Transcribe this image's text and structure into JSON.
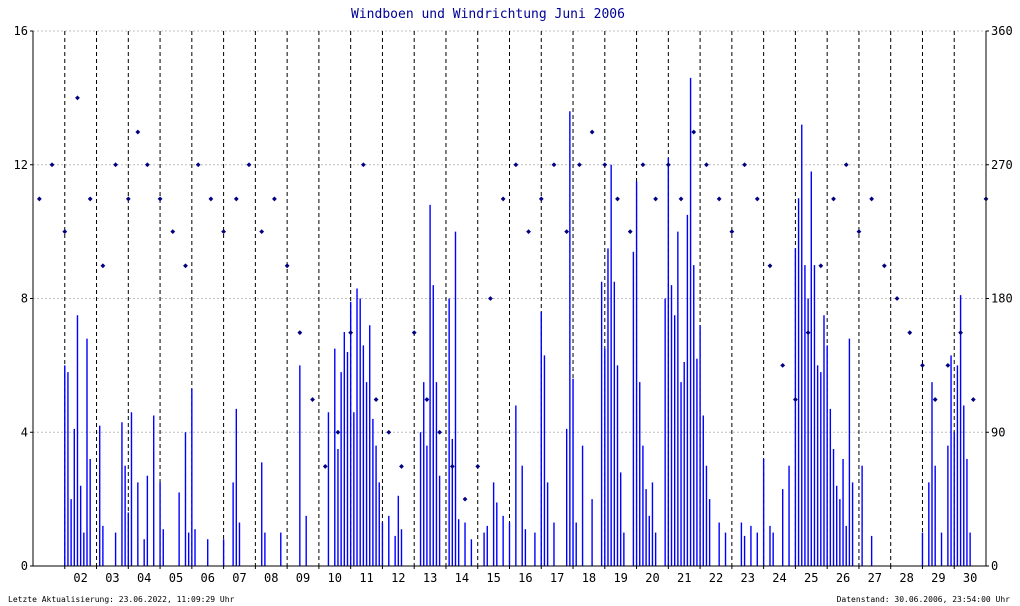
{
  "chart_data": {
    "type": "bar",
    "title": "Windboen und Windrichtung Juni 2006",
    "xlabel": "",
    "ylabel": "",
    "ylim": [
      0,
      16
    ],
    "y2lim": [
      0,
      360
    ],
    "yticks": [
      0,
      4,
      8,
      12,
      16
    ],
    "y2ticks": [
      0,
      90,
      180,
      270,
      360
    ],
    "x_days": [
      "02",
      "03",
      "04",
      "05",
      "06",
      "07",
      "08",
      "09",
      "10",
      "11",
      "12",
      "13",
      "14",
      "15",
      "16",
      "17",
      "18",
      "19",
      "20",
      "21",
      "22",
      "23",
      "24",
      "25",
      "26",
      "27",
      "28",
      "29",
      "30"
    ],
    "grid": true,
    "colors": {
      "gust_bars": "#0000ff",
      "direction_points": "#000080",
      "title": "#000099",
      "grid": "#000000"
    },
    "series": [
      {
        "type": "bar",
        "axis": "left",
        "values": [
          [
            1.0,
            6.0
          ],
          [
            1.1,
            5.8
          ],
          [
            1.2,
            2.0
          ],
          [
            1.3,
            4.1
          ],
          [
            1.4,
            7.5
          ],
          [
            1.5,
            2.4
          ],
          [
            1.6,
            1.0
          ],
          [
            1.7,
            6.8
          ],
          [
            1.8,
            3.2
          ],
          [
            2.1,
            4.2
          ],
          [
            2.2,
            1.2
          ],
          [
            2.6,
            1.0
          ],
          [
            2.8,
            4.3
          ],
          [
            2.9,
            3.0
          ],
          [
            3.0,
            1.6
          ],
          [
            3.1,
            4.6
          ],
          [
            3.3,
            2.5
          ],
          [
            3.5,
            0.8
          ],
          [
            3.6,
            2.7
          ],
          [
            3.8,
            4.5
          ],
          [
            4.0,
            2.5
          ],
          [
            4.1,
            1.1
          ],
          [
            4.6,
            2.2
          ],
          [
            4.8,
            4.0
          ],
          [
            4.9,
            1.0
          ],
          [
            5.0,
            5.3
          ],
          [
            5.1,
            1.1
          ],
          [
            5.5,
            0.8
          ],
          [
            6.0,
            0.8
          ],
          [
            6.3,
            2.5
          ],
          [
            6.4,
            4.7
          ],
          [
            6.5,
            1.3
          ],
          [
            7.2,
            3.1
          ],
          [
            7.3,
            1.0
          ],
          [
            7.8,
            1.0
          ],
          [
            8.4,
            6.0
          ],
          [
            8.6,
            1.5
          ],
          [
            9.3,
            4.6
          ],
          [
            9.5,
            6.5
          ],
          [
            9.6,
            3.5
          ],
          [
            9.7,
            5.8
          ],
          [
            9.8,
            7.0
          ],
          [
            9.9,
            6.4
          ],
          [
            10.0,
            7.9
          ],
          [
            10.1,
            4.6
          ],
          [
            10.2,
            8.3
          ],
          [
            10.3,
            8.0
          ],
          [
            10.4,
            6.6
          ],
          [
            10.5,
            5.5
          ],
          [
            10.6,
            7.2
          ],
          [
            10.7,
            4.4
          ],
          [
            10.8,
            3.6
          ],
          [
            10.9,
            2.5
          ],
          [
            11.0,
            1.3
          ],
          [
            11.2,
            1.5
          ],
          [
            11.4,
            0.9
          ],
          [
            11.5,
            2.1
          ],
          [
            11.6,
            1.1
          ],
          [
            12.2,
            4.0
          ],
          [
            12.3,
            5.5
          ],
          [
            12.4,
            3.6
          ],
          [
            12.5,
            10.8
          ],
          [
            12.6,
            8.4
          ],
          [
            12.7,
            5.5
          ],
          [
            12.8,
            2.7
          ],
          [
            13.1,
            8.0
          ],
          [
            13.2,
            3.8
          ],
          [
            13.3,
            10.0
          ],
          [
            13.4,
            1.4
          ],
          [
            13.6,
            1.3
          ],
          [
            13.8,
            0.8
          ],
          [
            14.2,
            1.0
          ],
          [
            14.3,
            1.2
          ],
          [
            14.5,
            2.5
          ],
          [
            14.6,
            1.9
          ],
          [
            14.8,
            1.5
          ],
          [
            15.0,
            1.3
          ],
          [
            15.2,
            4.8
          ],
          [
            15.4,
            3.0
          ],
          [
            15.5,
            1.1
          ],
          [
            15.8,
            1.0
          ],
          [
            16.0,
            7.6
          ],
          [
            16.1,
            6.3
          ],
          [
            16.2,
            2.5
          ],
          [
            16.4,
            1.3
          ],
          [
            16.8,
            4.1
          ],
          [
            16.9,
            13.6
          ],
          [
            17.0,
            5.6
          ],
          [
            17.1,
            1.3
          ],
          [
            17.3,
            3.6
          ],
          [
            17.6,
            2.0
          ],
          [
            17.9,
            8.5
          ],
          [
            18.0,
            6.5
          ],
          [
            18.1,
            9.5
          ],
          [
            18.2,
            12.0
          ],
          [
            18.3,
            8.5
          ],
          [
            18.4,
            6.0
          ],
          [
            18.5,
            2.8
          ],
          [
            18.6,
            1.0
          ],
          [
            18.9,
            9.4
          ],
          [
            19.0,
            11.5
          ],
          [
            19.1,
            5.5
          ],
          [
            19.2,
            3.6
          ],
          [
            19.3,
            2.3
          ],
          [
            19.4,
            1.5
          ],
          [
            19.5,
            2.5
          ],
          [
            19.6,
            1.0
          ],
          [
            19.9,
            8.0
          ],
          [
            20.0,
            12.2
          ],
          [
            20.1,
            8.4
          ],
          [
            20.2,
            7.5
          ],
          [
            20.3,
            10.0
          ],
          [
            20.4,
            5.5
          ],
          [
            20.5,
            6.1
          ],
          [
            20.6,
            10.5
          ],
          [
            20.7,
            14.6
          ],
          [
            20.8,
            9.0
          ],
          [
            20.9,
            6.2
          ],
          [
            21.0,
            7.2
          ],
          [
            21.1,
            4.5
          ],
          [
            21.2,
            3.0
          ],
          [
            21.3,
            2.0
          ],
          [
            21.6,
            1.3
          ],
          [
            21.8,
            1.0
          ],
          [
            22.3,
            1.3
          ],
          [
            22.4,
            0.9
          ],
          [
            22.6,
            1.2
          ],
          [
            22.8,
            1.0
          ],
          [
            23.0,
            3.2
          ],
          [
            23.2,
            1.2
          ],
          [
            23.3,
            1.0
          ],
          [
            23.6,
            2.3
          ],
          [
            23.8,
            3.0
          ],
          [
            24.0,
            9.5
          ],
          [
            24.1,
            11.0
          ],
          [
            24.2,
            13.2
          ],
          [
            24.3,
            9.0
          ],
          [
            24.4,
            8.0
          ],
          [
            24.5,
            11.8
          ],
          [
            24.6,
            9.0
          ],
          [
            24.7,
            6.0
          ],
          [
            24.8,
            5.8
          ],
          [
            24.9,
            7.5
          ],
          [
            25.0,
            6.6
          ],
          [
            25.1,
            4.7
          ],
          [
            25.2,
            3.5
          ],
          [
            25.3,
            2.4
          ],
          [
            25.4,
            2.0
          ],
          [
            25.5,
            3.2
          ],
          [
            25.6,
            1.2
          ],
          [
            25.7,
            6.8
          ],
          [
            25.8,
            2.5
          ],
          [
            26.1,
            3.0
          ],
          [
            26.4,
            0.9
          ],
          [
            28.0,
            1.0
          ],
          [
            28.2,
            2.5
          ],
          [
            28.3,
            5.5
          ],
          [
            28.4,
            3.0
          ],
          [
            28.6,
            1.0
          ],
          [
            28.8,
            3.6
          ],
          [
            28.9,
            6.3
          ],
          [
            29.0,
            4.0
          ],
          [
            29.1,
            6.0
          ],
          [
            29.2,
            8.1
          ],
          [
            29.3,
            4.8
          ],
          [
            29.4,
            3.2
          ],
          [
            29.5,
            1.0
          ]
        ]
      },
      {
        "type": "scatter",
        "axis": "right",
        "values": [
          [
            0.2,
            247
          ],
          [
            0.6,
            270
          ],
          [
            1.0,
            225
          ],
          [
            1.4,
            315
          ],
          [
            1.8,
            247
          ],
          [
            2.2,
            202
          ],
          [
            2.6,
            270
          ],
          [
            3.0,
            247
          ],
          [
            3.3,
            292
          ],
          [
            3.6,
            270
          ],
          [
            4.0,
            247
          ],
          [
            4.4,
            225
          ],
          [
            4.8,
            202
          ],
          [
            5.2,
            270
          ],
          [
            5.6,
            247
          ],
          [
            6.0,
            225
          ],
          [
            6.4,
            247
          ],
          [
            6.8,
            270
          ],
          [
            7.2,
            225
          ],
          [
            7.6,
            247
          ],
          [
            8.0,
            202
          ],
          [
            8.4,
            157
          ],
          [
            8.8,
            112
          ],
          [
            9.2,
            67
          ],
          [
            9.6,
            90
          ],
          [
            10.0,
            157
          ],
          [
            10.4,
            270
          ],
          [
            10.8,
            112
          ],
          [
            11.2,
            90
          ],
          [
            11.6,
            67
          ],
          [
            12.0,
            157
          ],
          [
            12.4,
            112
          ],
          [
            12.8,
            90
          ],
          [
            13.2,
            67
          ],
          [
            13.6,
            45
          ],
          [
            14.0,
            67
          ],
          [
            14.4,
            180
          ],
          [
            14.8,
            247
          ],
          [
            15.2,
            270
          ],
          [
            15.6,
            225
          ],
          [
            16.0,
            247
          ],
          [
            16.4,
            270
          ],
          [
            16.8,
            225
          ],
          [
            17.2,
            270
          ],
          [
            17.6,
            292
          ],
          [
            18.0,
            270
          ],
          [
            18.4,
            247
          ],
          [
            18.8,
            225
          ],
          [
            19.2,
            270
          ],
          [
            19.6,
            247
          ],
          [
            20.0,
            270
          ],
          [
            20.4,
            247
          ],
          [
            20.8,
            292
          ],
          [
            21.2,
            270
          ],
          [
            21.6,
            247
          ],
          [
            22.0,
            225
          ],
          [
            22.4,
            270
          ],
          [
            22.8,
            247
          ],
          [
            23.2,
            202
          ],
          [
            23.6,
            135
          ],
          [
            24.0,
            112
          ],
          [
            24.4,
            157
          ],
          [
            24.8,
            202
          ],
          [
            25.2,
            247
          ],
          [
            25.6,
            270
          ],
          [
            26.0,
            225
          ],
          [
            26.4,
            247
          ],
          [
            26.8,
            202
          ],
          [
            27.2,
            180
          ],
          [
            27.6,
            157
          ],
          [
            28.0,
            135
          ],
          [
            28.4,
            112
          ],
          [
            28.8,
            135
          ],
          [
            29.2,
            157
          ],
          [
            29.6,
            112
          ],
          [
            30.0,
            247
          ]
        ]
      }
    ]
  },
  "footer": {
    "left": "Letzte Aktualisierung: 23.06.2022, 11:09:29 Uhr",
    "right": "Datenstand: 30.06.2006, 23:54:00 Uhr"
  }
}
